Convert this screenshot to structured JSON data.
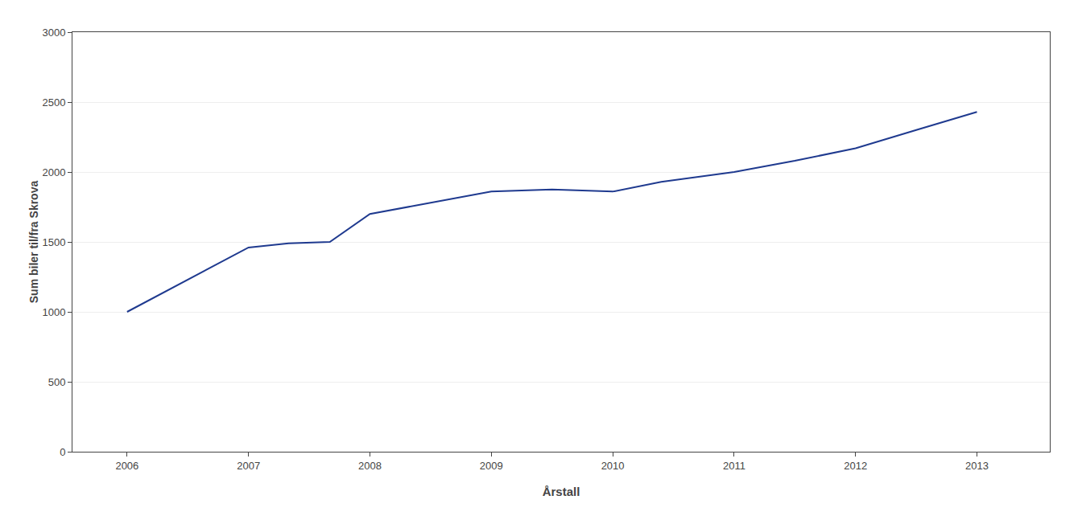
{
  "chart_data": {
    "type": "line",
    "xlabel": "Årstall",
    "ylabel": "Sum biler til/fra Skrova",
    "x": [
      2006,
      2006.5,
      2007,
      2007.33,
      2007.67,
      2008,
      2008.5,
      2009,
      2009.5,
      2010,
      2010.4,
      2011,
      2011.5,
      2012,
      2012.5,
      2013
    ],
    "values": [
      1000,
      1230,
      1460,
      1490,
      1500,
      1700,
      1780,
      1860,
      1875,
      1860,
      1930,
      2000,
      2080,
      2170,
      2300,
      2430
    ],
    "color": "#1F3A8F",
    "xlim": [
      2005.55,
      2013.6
    ],
    "xticks": [
      2006,
      2007,
      2008,
      2009,
      2010,
      2011,
      2012,
      2013
    ],
    "ylim": [
      0,
      3000
    ],
    "yticks": [
      0,
      500,
      1000,
      1500,
      2000,
      2500,
      3000
    ],
    "grid": "y"
  }
}
